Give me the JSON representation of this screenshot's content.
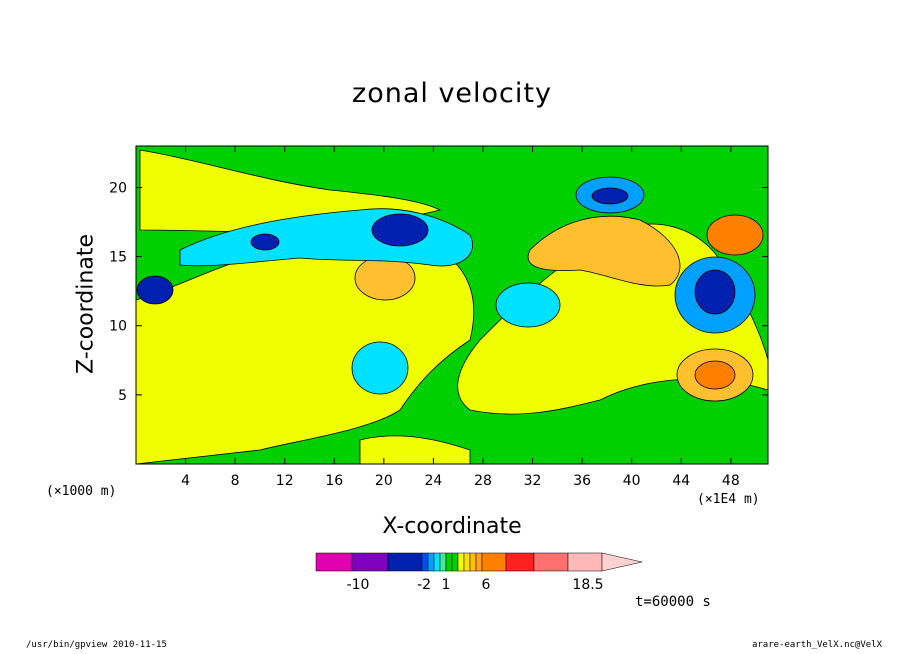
{
  "chart_data": {
    "type": "heatmap",
    "title": "zonal velocity",
    "xlabel": "X-coordinate",
    "ylabel": "Z-coordinate",
    "x_unit": "(×1E4 m)",
    "y_unit": "(×1000 m)",
    "xlim": [
      0,
      51
    ],
    "ylim": [
      0,
      23
    ],
    "x_ticks": [
      4,
      8,
      12,
      16,
      20,
      24,
      28,
      32,
      36,
      40,
      44,
      48
    ],
    "y_ticks": [
      5,
      10,
      15,
      20
    ],
    "colorbar": {
      "levels": [
        -14,
        -10,
        -6,
        -2,
        -1.5,
        -1,
        -0.5,
        0,
        0.5,
        1,
        1.5,
        2,
        2.5,
        4,
        6,
        10,
        14,
        18.5
      ],
      "colors": [
        "#e000b0",
        "#8000c0",
        "#0020b0",
        "#0050f0",
        "#00a0ff",
        "#00e0ff",
        "#40e8a0",
        "#00d000",
        "#00d000",
        "#f0ff00",
        "#ffe000",
        "#ffc000",
        "#ffa020",
        "#ff8000",
        "#ff2020",
        "#ff7070",
        "#ffb8b8",
        "#ffd0d0"
      ],
      "tick_labels": [
        "-10",
        "-2",
        "1",
        "6",
        "18.5"
      ]
    },
    "time_label": "t=60000 s"
  },
  "footer": {
    "left": "/usr/bin/gpview   2010-11-15",
    "right": "arare-earth_VelX.nc@VelX"
  },
  "colors": {
    "green": "#00d000",
    "yellow": "#f0ff00",
    "cyan": "#00e0ff",
    "light_blue": "#00a0ff",
    "blue": "#0020b0",
    "orange": "#ffc030",
    "dark_orange": "#ff8000"
  }
}
